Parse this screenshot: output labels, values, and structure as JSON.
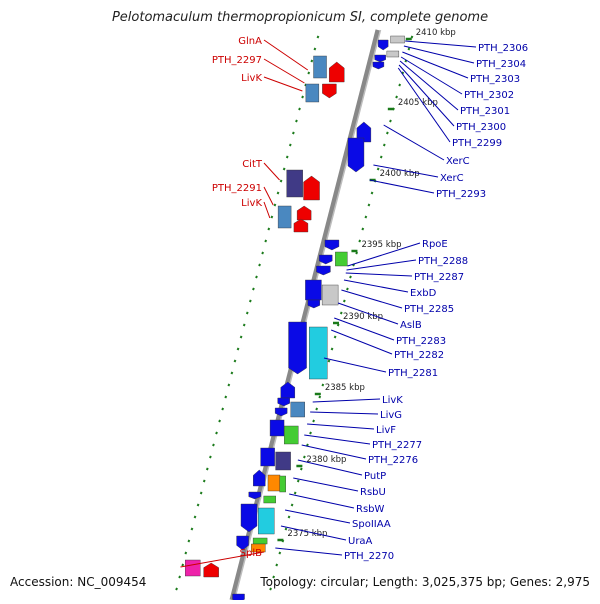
{
  "title": "Pelotomaculum thermopropionicum SI, complete genome",
  "accession": "Accession: NC_009454",
  "topology": "Topology: circular; Length: 3,025,375 bp; Genes: 2,975",
  "scale_labels": [
    "2410 kbp",
    "2405 kbp",
    "2400 kbp",
    "2395 kbp",
    "2390 kbp",
    "2385 kbp",
    "2380 kbp",
    "2375 kbp"
  ],
  "left_labels": [
    "GlnA",
    "PTH_2297",
    "LivK",
    "CitT",
    "PTH_2291",
    "LivK",
    "SplB"
  ],
  "right_labels": [
    "PTH_2306",
    "PTH_2304",
    "PTH_2303",
    "PTH_2302",
    "PTH_2301",
    "PTH_2300",
    "PTH_2299",
    "XerC",
    "XerC",
    "PTH_2293",
    "RpoE",
    "PTH_2288",
    "PTH_2287",
    "ExbD",
    "PTH_2285",
    "AslB",
    "PTH_2283",
    "PTH_2282",
    "PTH_2281",
    "LivK",
    "LivG",
    "LivF",
    "PTH_2277",
    "PTH_2276",
    "PutP",
    "RsbU",
    "RsbW",
    "SpoIIAA",
    "UraA",
    "PTH_2270"
  ],
  "colors": {
    "backbone": "#888888",
    "left_label": "#cc0000",
    "right_label": "#0000aa",
    "scale_tick": "#1a7a1a",
    "gene_blue": "#0a0ae6",
    "gene_red": "#ee0000",
    "gene_steel": "#4a88c0",
    "gene_navy": "#403a86",
    "gene_cyan": "#22cce0",
    "gene_green": "#44cc33",
    "gene_orange": "#ff8800",
    "gene_grey": "#c8c8c8",
    "gene_magenta": "#ee22aa"
  }
}
